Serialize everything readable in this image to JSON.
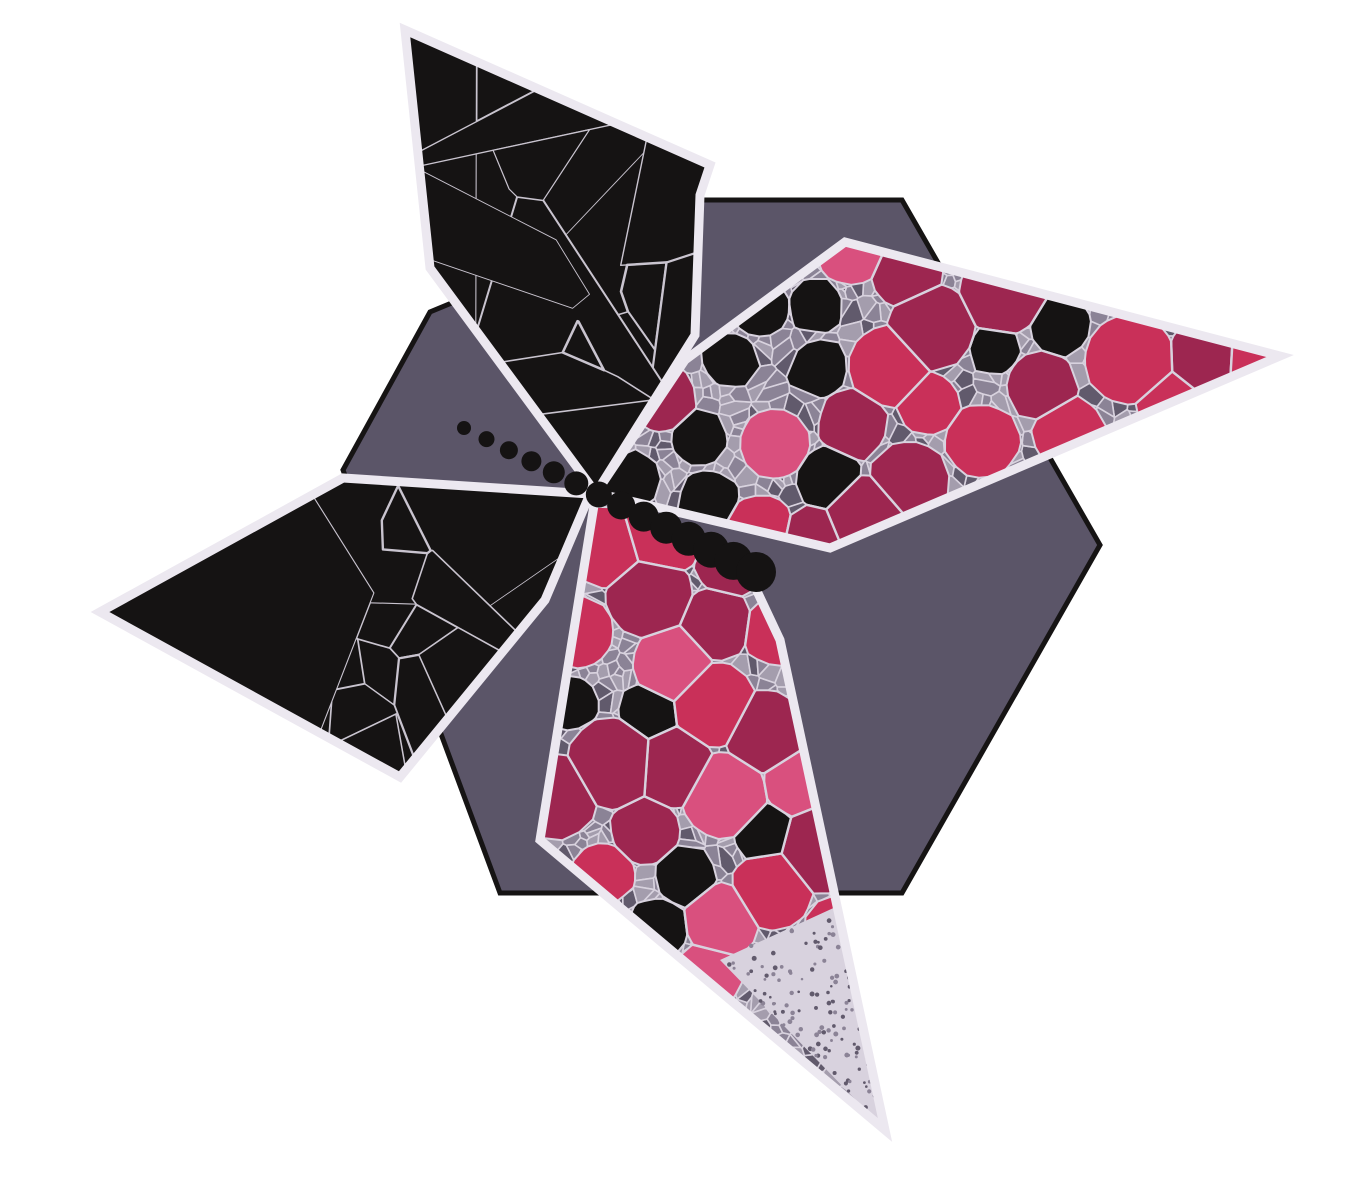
{
  "artwork": {
    "colors": {
      "background": "#ffffff",
      "hexagon_fill": "#5b5568",
      "hexagon_stroke": "#161414",
      "petal_outline": "#ece8f0",
      "dark_cell": "#151313",
      "cell_edge": "#d8d2de",
      "gray_light": "#a49dad",
      "gray_mid": "#8b8396",
      "gray_dark": "#615a6c",
      "crimson": "#9d2650",
      "rose": "#c93059",
      "pink": "#d9507e",
      "dot": "#151313"
    },
    "petals": [
      {
        "name": "top-left-petal",
        "palette": "dark"
      },
      {
        "name": "left-petal",
        "palette": "dark"
      },
      {
        "name": "right-petal",
        "palette": "mixed"
      },
      {
        "name": "bottom-petal",
        "palette": "mixed"
      }
    ]
  }
}
